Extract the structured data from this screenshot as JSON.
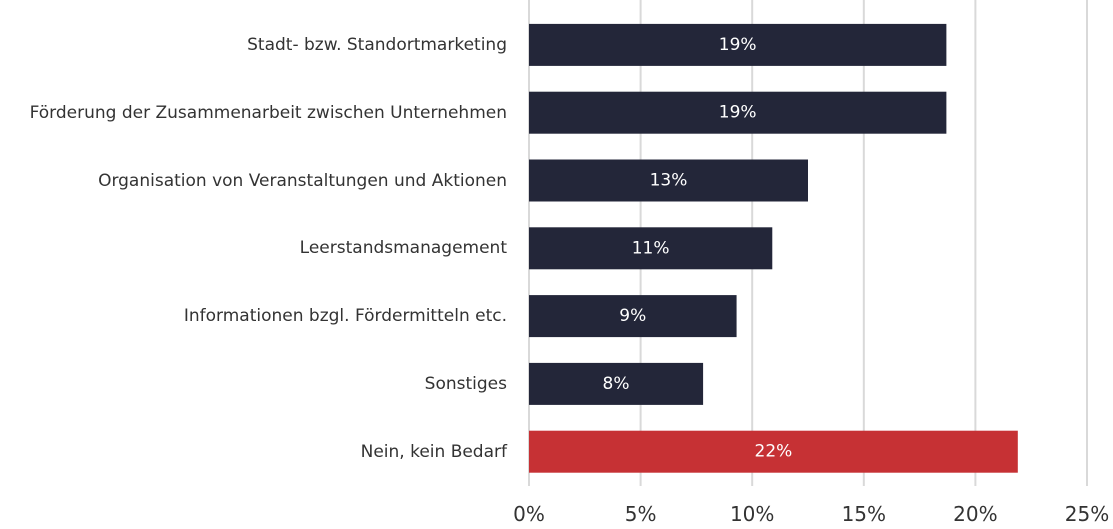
{
  "chart_data": {
    "type": "bar",
    "orientation": "horizontal",
    "categories": [
      "Stadt- bzw. Standortmarketing",
      "Förderung der Zusammenarbeit zwischen Unternehmen",
      "Organisation von Veranstaltungen und Aktionen",
      "Leerstandsmanagement",
      "Informationen bzgl. Fördermitteln etc.",
      "Sonstiges",
      "Nein, kein Bedarf"
    ],
    "values": [
      18.7,
      18.7,
      12.5,
      10.9,
      9.3,
      7.8,
      21.9
    ],
    "value_labels": [
      "19%",
      "19%",
      "13%",
      "11%",
      "9%",
      "8%",
      "22%"
    ],
    "colors": [
      "#232639",
      "#232639",
      "#232639",
      "#232639",
      "#232639",
      "#232639",
      "#c63134"
    ],
    "xlim": [
      0,
      25
    ],
    "xticks": [
      {
        "value": 0,
        "label": "0%"
      },
      {
        "value": 5,
        "label": "5%"
      },
      {
        "value": 10,
        "label": "10%"
      },
      {
        "value": 15,
        "label": "15%"
      },
      {
        "value": 20,
        "label": "20%"
      },
      {
        "value": 25,
        "label": "25%"
      }
    ],
    "grid": true
  }
}
